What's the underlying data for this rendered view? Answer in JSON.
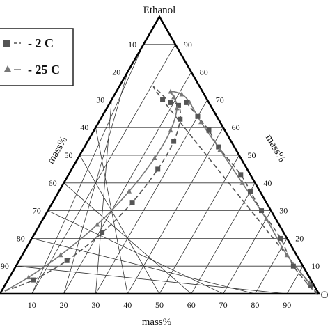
{
  "chart_data": {
    "type": "scatter",
    "subtype": "ternary",
    "vertices": {
      "top": "Ethanol",
      "right": "O"
    },
    "axis_labels": {
      "left": "mass%",
      "right": "mass%",
      "bottom": "mass%"
    },
    "ticks": {
      "left": [
        "10",
        "20",
        "30",
        "40",
        "50",
        "60",
        "70",
        "80",
        "90"
      ],
      "right": [
        "10",
        "20",
        "30",
        "40",
        "50",
        "60",
        "70",
        "80",
        "90"
      ],
      "bottom": [
        "10",
        "20",
        "30",
        "40",
        "50",
        "60",
        "70",
        "80",
        "90"
      ]
    },
    "legend": {
      "placement": "top-left",
      "entries": [
        "- 2 C",
        "- 25 C"
      ]
    },
    "grid": true,
    "series": [
      {
        "name": "- 2 C",
        "marker": "square",
        "line": "dashed",
        "color": "#555555",
        "points": [
          {
            "ethanol": 1,
            "right": 1
          },
          {
            "ethanol": 5,
            "right": 8
          },
          {
            "ethanol": 12,
            "right": 15
          },
          {
            "ethanol": 22,
            "right": 21
          },
          {
            "ethanol": 33,
            "right": 25
          },
          {
            "ethanol": 45,
            "right": 27
          },
          {
            "ethanol": 55,
            "right": 27
          },
          {
            "ethanol": 63,
            "right": 25
          },
          {
            "ethanol": 68,
            "right": 22
          },
          {
            "ethanol": 69,
            "right": 19
          },
          {
            "ethanol": 70,
            "right": 16
          },
          {
            "ethanol": 3,
            "right": 96
          },
          {
            "ethanol": 10,
            "right": 87
          },
          {
            "ethanol": 20,
            "right": 78
          },
          {
            "ethanol": 30,
            "right": 67
          },
          {
            "ethanol": 37,
            "right": 60
          },
          {
            "ethanol": 43,
            "right": 54
          },
          {
            "ethanol": 53,
            "right": 42
          },
          {
            "ethanol": 59,
            "right": 36
          },
          {
            "ethanol": 64,
            "right": 30
          },
          {
            "ethanol": 69,
            "right": 24
          }
        ]
      },
      {
        "name": "- 25 C",
        "marker": "triangle",
        "line": "solid",
        "color": "#777777",
        "points": [
          {
            "ethanol": 1,
            "right": 1
          },
          {
            "ethanol": 6,
            "right": 6
          },
          {
            "ethanol": 14,
            "right": 12
          },
          {
            "ethanol": 25,
            "right": 18
          },
          {
            "ethanol": 37,
            "right": 22
          },
          {
            "ethanol": 49,
            "right": 24
          },
          {
            "ethanol": 59,
            "right": 24
          },
          {
            "ethanol": 67,
            "right": 22
          },
          {
            "ethanol": 71,
            "right": 19
          },
          {
            "ethanol": 73,
            "right": 17
          },
          {
            "ethanol": 72,
            "right": 21
          },
          {
            "ethanol": 69,
            "right": 25
          },
          {
            "ethanol": 62,
            "right": 32
          },
          {
            "ethanol": 52,
            "right": 43
          },
          {
            "ethanol": 40,
            "right": 56
          },
          {
            "ethanol": 27,
            "right": 70
          },
          {
            "ethanol": 14,
            "right": 83
          },
          {
            "ethanol": 4,
            "right": 95
          }
        ]
      }
    ]
  }
}
